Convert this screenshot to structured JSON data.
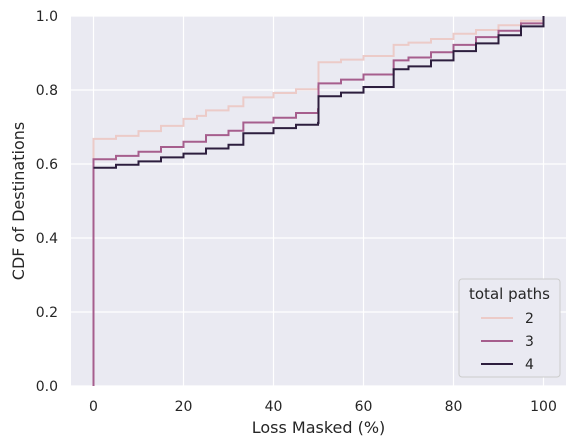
{
  "chart_data": {
    "type": "line",
    "title": "",
    "xlabel": "Loss Masked (%)",
    "ylabel": "CDF of Destinations",
    "xlim": [
      -5,
      105
    ],
    "ylim": [
      0.0,
      1.0
    ],
    "x_ticks": [
      "0",
      "20",
      "40",
      "60",
      "80",
      "100"
    ],
    "y_ticks": [
      "0.0",
      "0.2",
      "0.4",
      "0.6",
      "0.8",
      "1.0"
    ],
    "grid": true,
    "background": "#eaeaf2",
    "legend": {
      "title": "total paths",
      "placement": "lower-right"
    },
    "series": [
      {
        "name": "2",
        "color": "#eccbc8",
        "points": [
          [
            0,
            0.0
          ],
          [
            0,
            0.668
          ],
          [
            5,
            0.676
          ],
          [
            10,
            0.689
          ],
          [
            15,
            0.703
          ],
          [
            20,
            0.722
          ],
          [
            23,
            0.73
          ],
          [
            25,
            0.745
          ],
          [
            30,
            0.756
          ],
          [
            33.3,
            0.762
          ],
          [
            33.3,
            0.78
          ],
          [
            40,
            0.792
          ],
          [
            45,
            0.802
          ],
          [
            49.9,
            0.809
          ],
          [
            50,
            0.875
          ],
          [
            55,
            0.882
          ],
          [
            60,
            0.892
          ],
          [
            66.7,
            0.905
          ],
          [
            66.7,
            0.922
          ],
          [
            70,
            0.928
          ],
          [
            75,
            0.938
          ],
          [
            80,
            0.952
          ],
          [
            85,
            0.962
          ],
          [
            90,
            0.975
          ],
          [
            95,
            0.987
          ],
          [
            100,
            1.0
          ]
        ]
      },
      {
        "name": "3",
        "color": "#a65e8d",
        "points": [
          [
            0,
            0.0
          ],
          [
            0,
            0.613
          ],
          [
            5,
            0.622
          ],
          [
            10,
            0.633
          ],
          [
            15,
            0.646
          ],
          [
            20,
            0.66
          ],
          [
            25,
            0.678
          ],
          [
            30,
            0.69
          ],
          [
            33.3,
            0.696
          ],
          [
            33.3,
            0.712
          ],
          [
            40,
            0.725
          ],
          [
            45,
            0.738
          ],
          [
            49.9,
            0.748
          ],
          [
            50,
            0.818
          ],
          [
            55,
            0.828
          ],
          [
            60,
            0.842
          ],
          [
            66.7,
            0.858
          ],
          [
            66.7,
            0.88
          ],
          [
            70,
            0.888
          ],
          [
            75,
            0.902
          ],
          [
            80,
            0.922
          ],
          [
            85,
            0.943
          ],
          [
            90,
            0.96
          ],
          [
            95,
            0.98
          ],
          [
            100,
            1.0
          ]
        ]
      },
      {
        "name": "4",
        "color": "#2d1e3e",
        "points": [
          [
            0,
            0.59
          ],
          [
            5,
            0.598
          ],
          [
            10,
            0.607
          ],
          [
            15,
            0.618
          ],
          [
            20,
            0.628
          ],
          [
            25,
            0.642
          ],
          [
            30,
            0.652
          ],
          [
            33.3,
            0.658
          ],
          [
            33.3,
            0.683
          ],
          [
            40,
            0.697
          ],
          [
            45,
            0.706
          ],
          [
            49.9,
            0.711
          ],
          [
            50,
            0.783
          ],
          [
            55,
            0.793
          ],
          [
            60,
            0.808
          ],
          [
            66.7,
            0.826
          ],
          [
            66.7,
            0.856
          ],
          [
            70,
            0.864
          ],
          [
            75,
            0.88
          ],
          [
            80,
            0.905
          ],
          [
            85,
            0.926
          ],
          [
            90,
            0.948
          ],
          [
            95,
            0.972
          ],
          [
            100,
            1.0
          ]
        ]
      }
    ]
  }
}
